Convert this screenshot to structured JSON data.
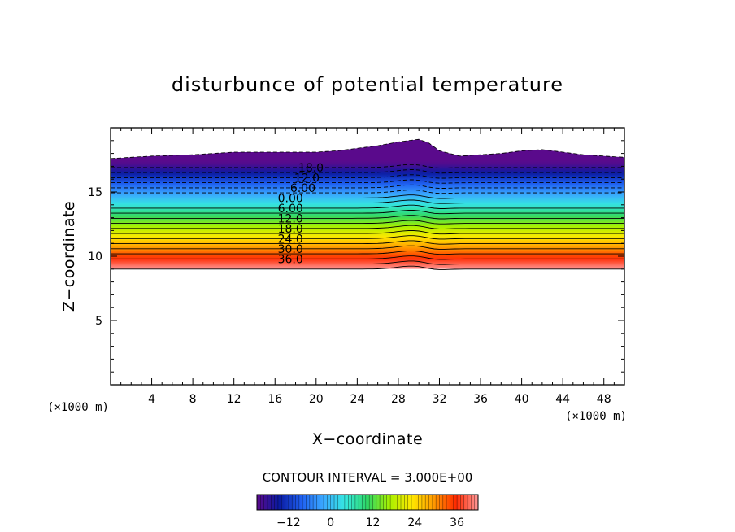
{
  "chart_data": {
    "type": "contour",
    "title": "disturbunce of potential temperature",
    "xlabel": "X−coordinate",
    "ylabel": "Z−coordinate",
    "x_unit": "(×1000 m)",
    "y_unit": "(×1000 m)",
    "xlim": [
      0,
      50
    ],
    "ylim": [
      0,
      20
    ],
    "x_ticks": [
      4,
      8,
      12,
      16,
      20,
      24,
      28,
      32,
      36,
      40,
      44,
      48
    ],
    "y_ticks": [
      5,
      10,
      15
    ],
    "contour_interval_label": "CONTOUR INTERVAL = 3.000E+00",
    "contour_interval": 3,
    "negative_contours": "dashed",
    "contour_labels": [
      "18.0",
      "12.0",
      "6.00",
      "0.00",
      "6.00",
      "12.0",
      "18.0",
      "24.0",
      "30.0",
      "36.0"
    ],
    "colorbar": {
      "range": [
        -21,
        42
      ],
      "tick_values": [
        -12,
        0,
        12,
        24,
        36
      ],
      "tick_labels": [
        "−12",
        "0",
        "12",
        "24",
        "36"
      ],
      "colors": [
        "#5a0a8c",
        "#0a1aa0",
        "#1f5ff0",
        "#3aa8ff",
        "#35e8e0",
        "#2fd865",
        "#a8f000",
        "#ffe800",
        "#ff9a00",
        "#ff2a00",
        "#ff9999"
      ]
    },
    "field": {
      "bottom_z": 9.0,
      "bottom_value": 42,
      "base_top_z": 17.3,
      "top_value": -21,
      "top_edge_profile": {
        "x": [
          0,
          4,
          8,
          12,
          16,
          20,
          22,
          24,
          26,
          28,
          29,
          30,
          31,
          32,
          34,
          36,
          38,
          40,
          42,
          44,
          46,
          48,
          50
        ],
        "z": [
          17.6,
          17.8,
          17.9,
          18.1,
          18.1,
          18.1,
          18.2,
          18.4,
          18.6,
          18.9,
          19.0,
          19.1,
          18.8,
          18.2,
          17.8,
          17.9,
          18.0,
          18.2,
          18.3,
          18.1,
          17.9,
          17.8,
          17.7
        ]
      }
    }
  }
}
